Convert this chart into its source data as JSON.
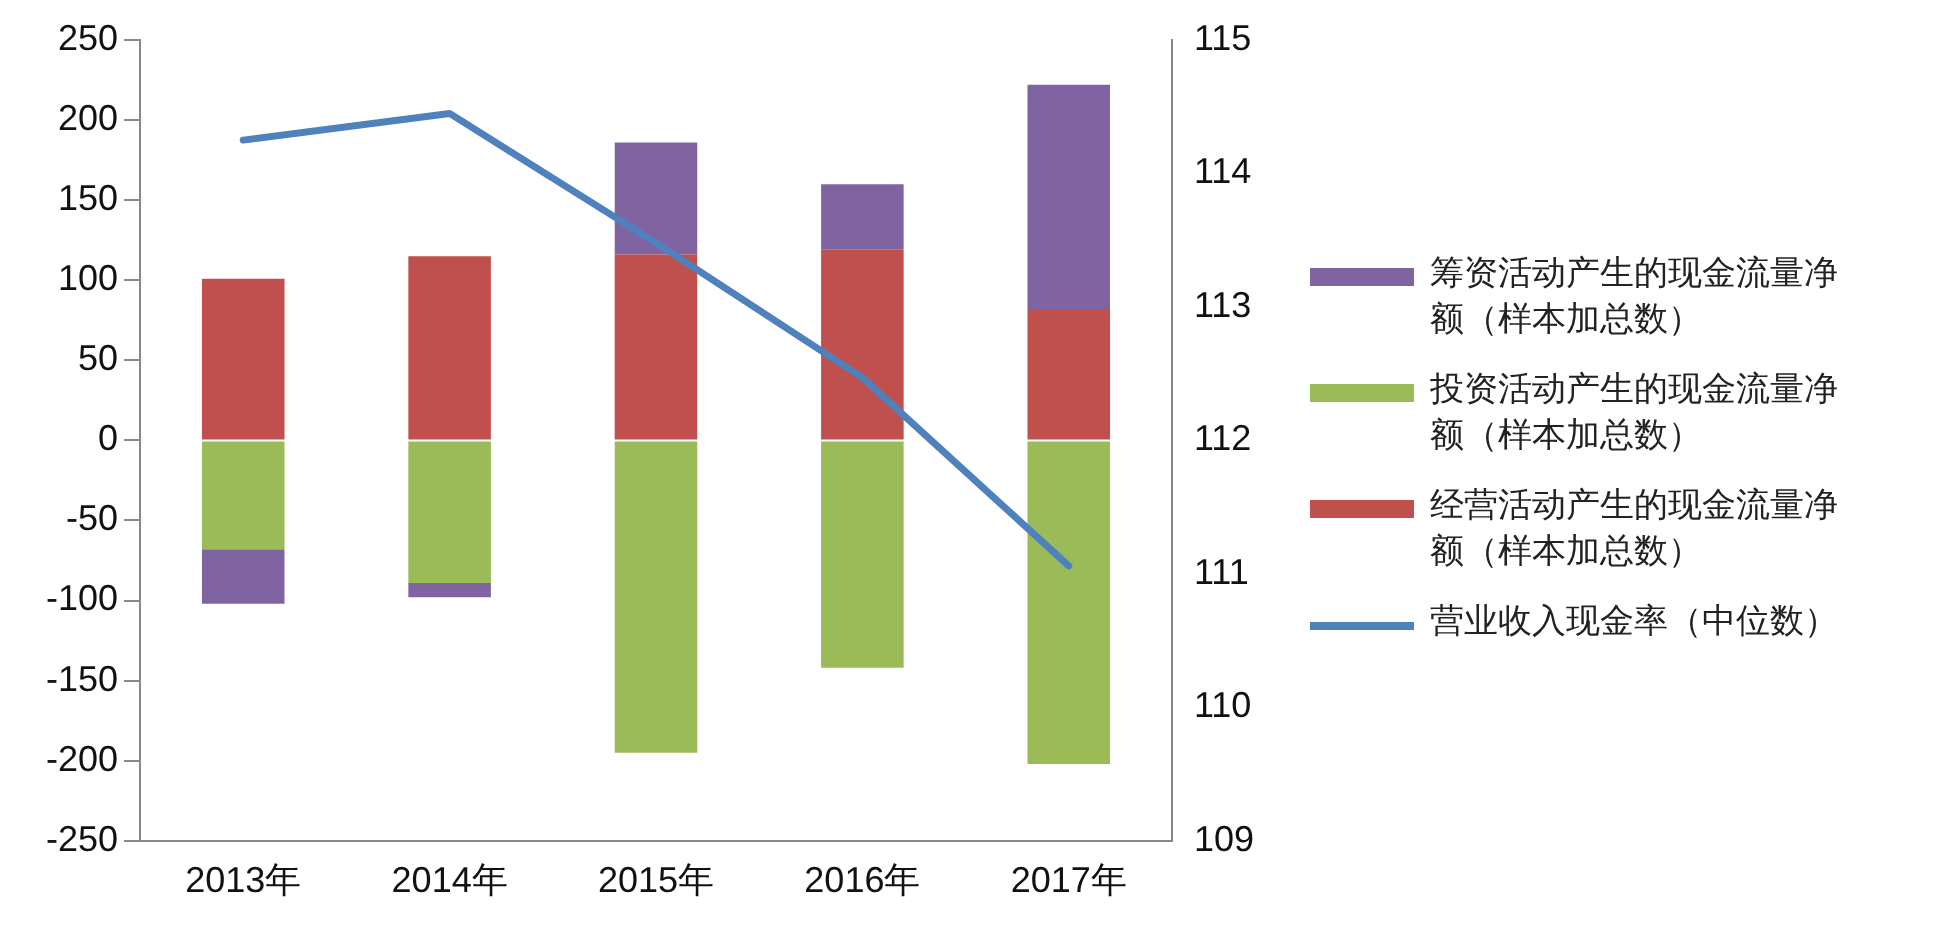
{
  "chart_data": {
    "type": "bar",
    "stacked": true,
    "categories": [
      "2013年",
      "2014年",
      "2015年",
      "2016年",
      "2017年"
    ],
    "series": [
      {
        "name": "经营活动产生的现金流量净额（样本加总数）",
        "color": "#c0504d",
        "values": [
          101,
          115,
          116,
          119,
          82
        ]
      },
      {
        "name": "投资活动产生的现金流量净额（样本加总数）",
        "color": "#9bbb59",
        "values": [
          -68,
          -89,
          -195,
          -142,
          -202
        ]
      },
      {
        "name": "筹资活动产生的现金流量净额（样本加总数）",
        "color": "#8064a2",
        "values": [
          -34,
          -9,
          70,
          41,
          140
        ]
      },
      {
        "name": "营业收入现金率（中位数）",
        "color": "#4f81bd",
        "type": "line",
        "axis": "y2",
        "values": [
          114.25,
          114.45,
          113.48,
          112.47,
          111.06
        ]
      }
    ],
    "ylim": [
      -250,
      250
    ],
    "yticks": [
      -250,
      -200,
      -150,
      -100,
      -50,
      0,
      50,
      100,
      150,
      200,
      250
    ],
    "y2lim": [
      109,
      115
    ],
    "y2ticks": [
      109,
      110,
      111,
      112,
      113,
      114,
      115
    ],
    "grid": false,
    "legend": "right",
    "marker": "none",
    "line_style": "solid"
  }
}
